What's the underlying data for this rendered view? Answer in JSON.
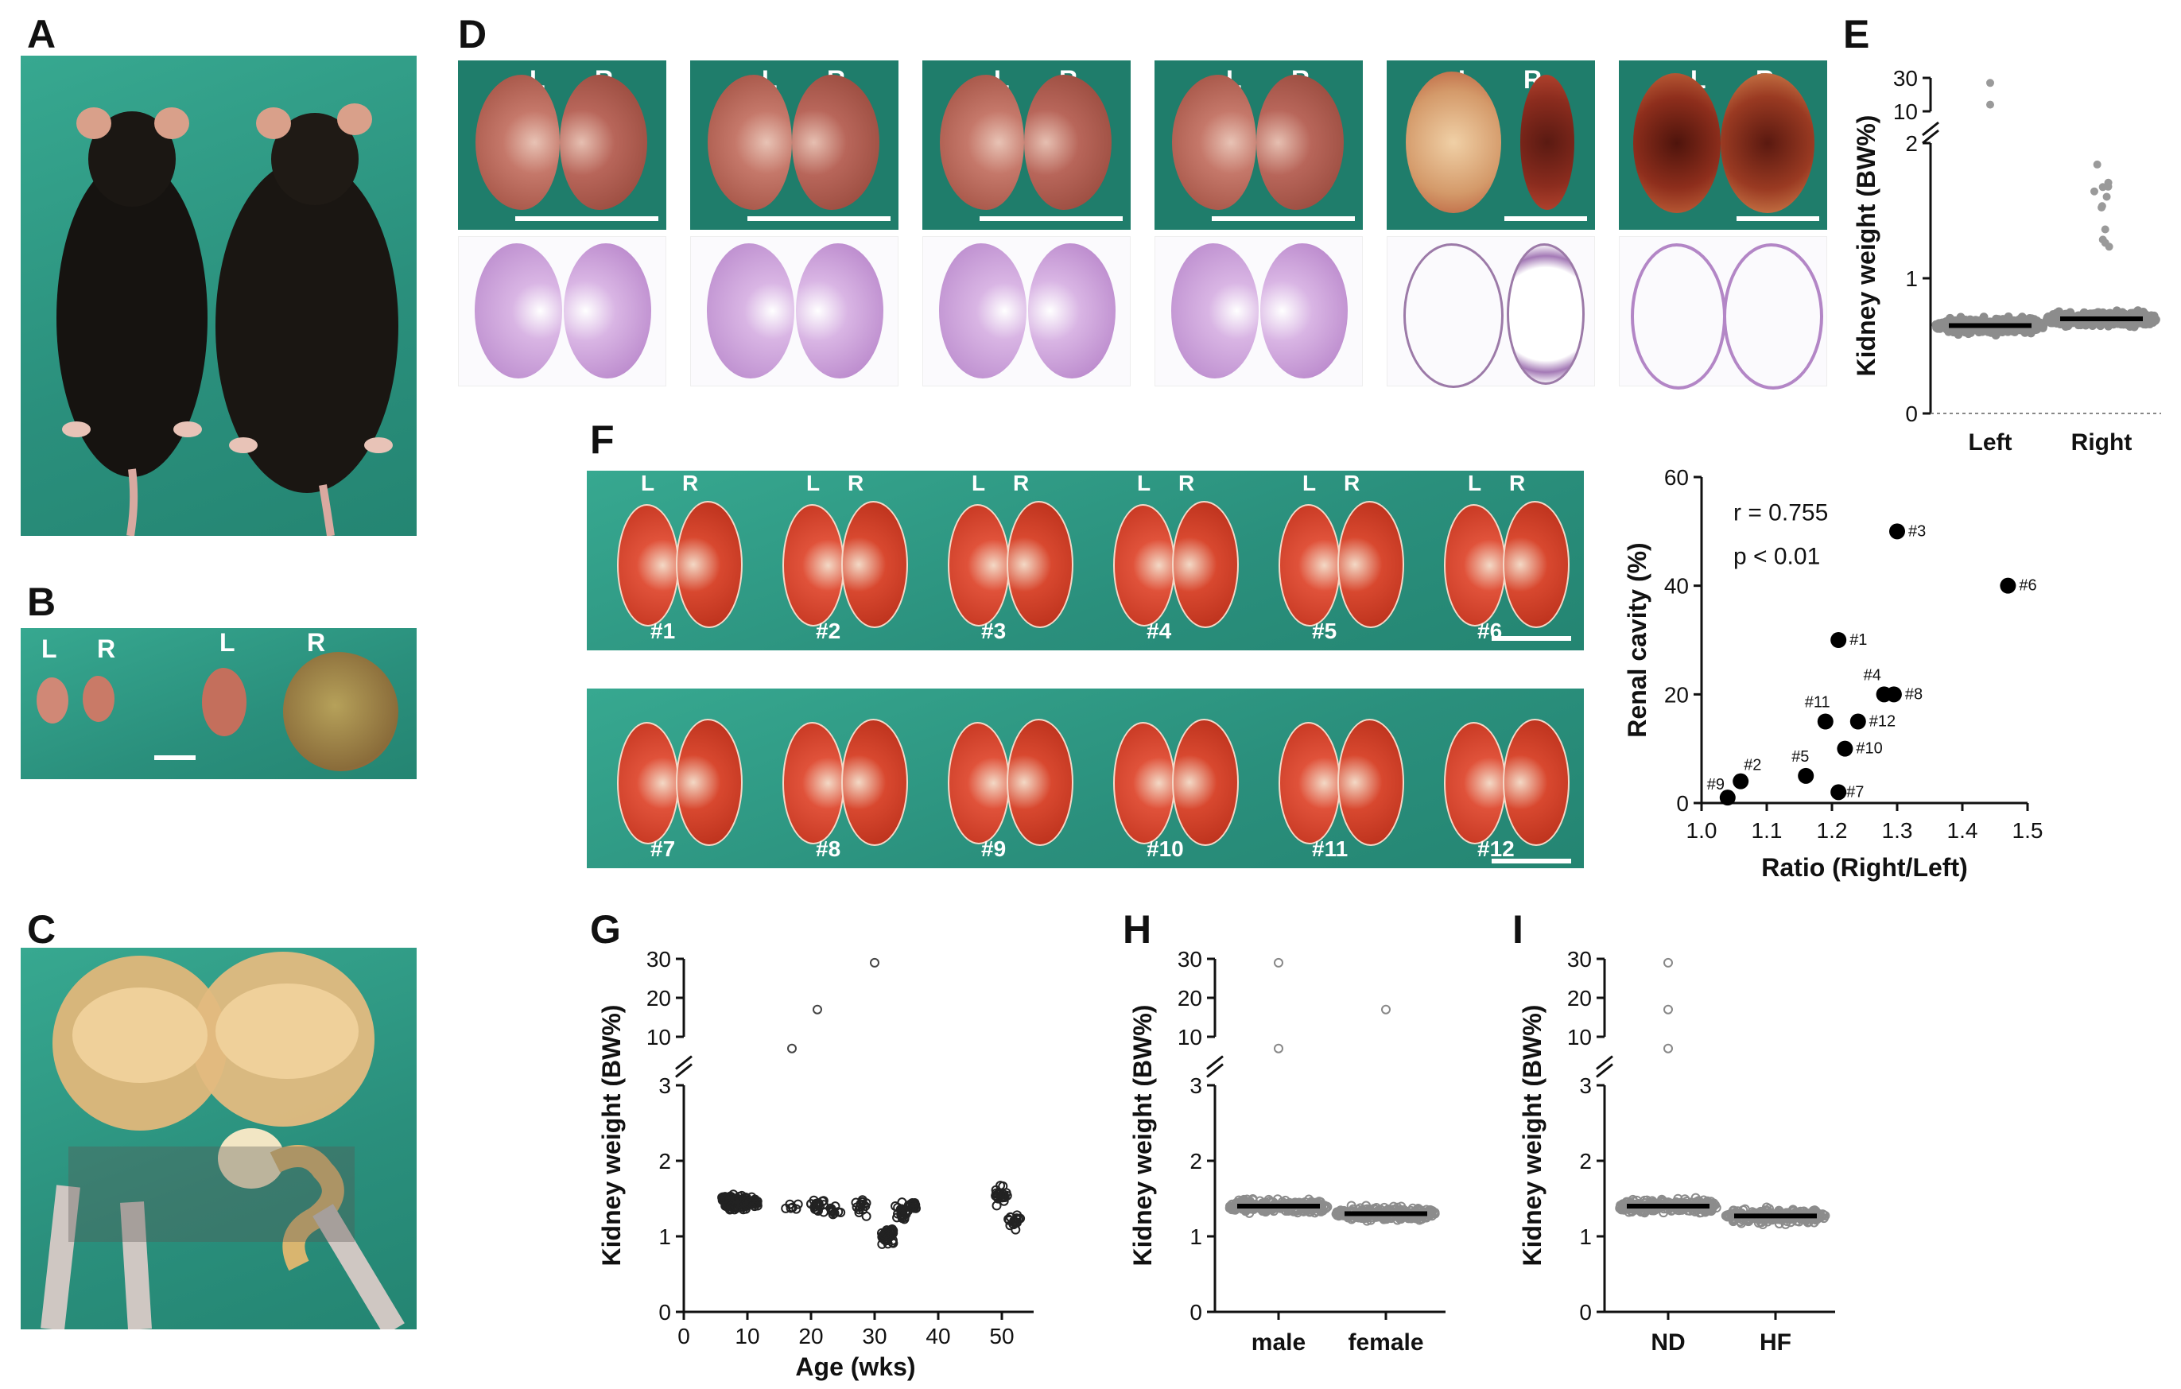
{
  "panels": {
    "A": "A",
    "B": "B",
    "C": "C",
    "D": "D",
    "E": "E",
    "F": "F",
    "G": "G",
    "H": "H",
    "I": "I"
  },
  "side": {
    "left": "L",
    "right": "R"
  },
  "f_photo_labels": [
    "#1",
    "#2",
    "#3",
    "#4",
    "#5",
    "#6",
    "#7",
    "#8",
    "#9",
    "#10",
    "#11",
    "#12"
  ],
  "colors": {
    "teal": "#2c9b86",
    "kidney": "#b5452f",
    "histo": "#c59ad8",
    "point": "#8c8c8c"
  },
  "chart_data": [
    {
      "id": "E",
      "type": "scatter",
      "title": "",
      "ylabel": "Kidney weight (BW%)",
      "categories": [
        "Left",
        "Right"
      ],
      "y_ticks_lower": [
        "0",
        "1",
        "2"
      ],
      "y_ticks_upper": [
        "10",
        "30"
      ],
      "ylim": [
        0,
        2
      ],
      "ylim_upper": [
        10,
        30
      ],
      "medians": [
        0.65,
        0.7
      ],
      "outliers": [
        {
          "group": "Left",
          "values": [
            27,
            14
          ]
        }
      ]
    },
    {
      "id": "F",
      "type": "scatter",
      "xlabel": "Ratio (Right/Left)",
      "ylabel": "Renal cavity (%)",
      "xlim": [
        1.0,
        1.5
      ],
      "ylim": [
        0,
        60
      ],
      "x_ticks": [
        "1.0",
        "1.1",
        "1.2",
        "1.3",
        "1.4",
        "1.5"
      ],
      "y_ticks": [
        "0",
        "20",
        "40",
        "60"
      ],
      "annotation": [
        "r = 0.755",
        "p < 0.01"
      ],
      "points": [
        {
          "label": "#1",
          "x": 1.21,
          "y": 30
        },
        {
          "label": "#2",
          "x": 1.06,
          "y": 4
        },
        {
          "label": "#3",
          "x": 1.3,
          "y": 50
        },
        {
          "label": "#4",
          "x": 1.28,
          "y": 20
        },
        {
          "label": "#5",
          "x": 1.16,
          "y": 5
        },
        {
          "label": "#6",
          "x": 1.47,
          "y": 40
        },
        {
          "label": "#7",
          "x": 1.21,
          "y": 2
        },
        {
          "label": "#8",
          "x": 1.295,
          "y": 20
        },
        {
          "label": "#9",
          "x": 1.04,
          "y": 1
        },
        {
          "label": "#10",
          "x": 1.22,
          "y": 10
        },
        {
          "label": "#11",
          "x": 1.19,
          "y": 15
        },
        {
          "label": "#12",
          "x": 1.24,
          "y": 15
        }
      ]
    },
    {
      "id": "G",
      "type": "scatter",
      "xlabel": "Age (wks)",
      "ylabel": "Kidney weight (BW%)",
      "xlim": [
        0,
        55
      ],
      "x_ticks": [
        "0",
        "10",
        "20",
        "30",
        "40",
        "50"
      ],
      "y_ticks_lower": [
        "0",
        "1",
        "2",
        "3"
      ],
      "y_ticks_upper": [
        "10",
        "20",
        "30"
      ],
      "ylim": [
        0,
        3
      ],
      "ylim_upper": [
        10,
        30
      ],
      "age_groups": [
        8,
        17,
        21,
        25,
        29,
        33,
        36,
        50,
        52
      ],
      "outliers": [
        {
          "x": 17,
          "y": 7
        },
        {
          "x": 21,
          "y": 17
        },
        {
          "x": 30,
          "y": 29
        }
      ]
    },
    {
      "id": "H",
      "type": "scatter",
      "ylabel": "Kidney weight (BW%)",
      "categories": [
        "male",
        "female"
      ],
      "y_ticks_lower": [
        "0",
        "1",
        "2",
        "3"
      ],
      "y_ticks_upper": [
        "10",
        "20",
        "30"
      ],
      "ylim": [
        0,
        3
      ],
      "ylim_upper": [
        10,
        30
      ],
      "medians": [
        1.4,
        1.3
      ],
      "outliers": [
        {
          "group": "male",
          "values": [
            29,
            7
          ]
        },
        {
          "group": "female",
          "values": [
            17
          ]
        }
      ]
    },
    {
      "id": "I",
      "type": "scatter",
      "ylabel": "Kidney weight (BW%)",
      "categories": [
        "ND",
        "HF"
      ],
      "y_ticks_lower": [
        "0",
        "1",
        "2",
        "3"
      ],
      "y_ticks_upper": [
        "10",
        "20",
        "30"
      ],
      "ylim": [
        0,
        3
      ],
      "ylim_upper": [
        10,
        30
      ],
      "medians": [
        1.4,
        1.27
      ],
      "outliers": [
        {
          "group": "ND",
          "values": [
            29,
            17,
            7
          ]
        }
      ]
    }
  ]
}
